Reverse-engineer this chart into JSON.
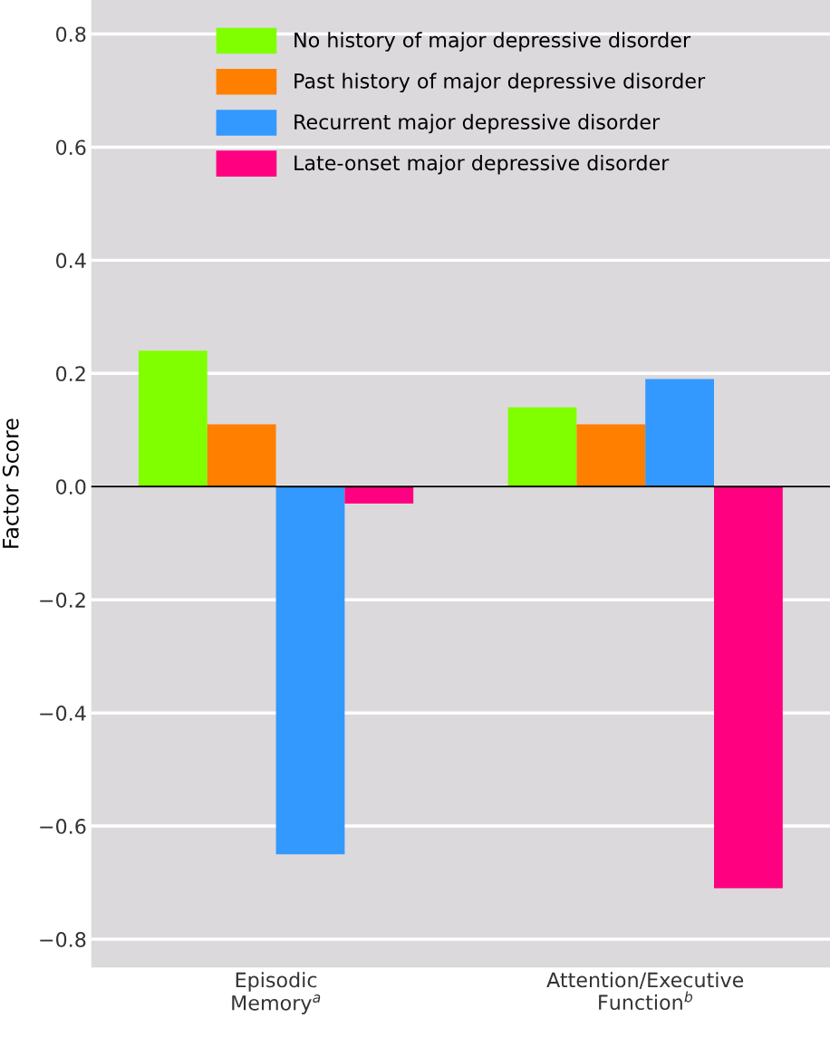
{
  "chart_data": {
    "type": "bar",
    "ylabel": "Factor Score",
    "categories": [
      "Episodic\nMemory$^{a}$",
      "Attention/Executive\nFunction$^{b}$"
    ],
    "series": [
      {
        "name": "No history of major depressive disorder",
        "color": "#80ff00",
        "values": [
          0.24,
          0.14
        ]
      },
      {
        "name": "Past history of major depressive disorder",
        "color": "#ff8000",
        "values": [
          0.11,
          0.11
        ]
      },
      {
        "name": "Recurrent major depressive disorder",
        "color": "#3399ff",
        "values": [
          -0.65,
          0.19
        ]
      },
      {
        "name": "Late-onset major depressive disorder",
        "color": "#ff0080",
        "values": [
          -0.03,
          -0.71
        ]
      }
    ],
    "ylim": [
      -0.85,
      0.86
    ],
    "yticks": [
      {
        "value": -0.8,
        "label": "−0.8"
      },
      {
        "value": -0.6,
        "label": "−0.6"
      },
      {
        "value": -0.4,
        "label": "−0.4"
      },
      {
        "value": -0.2,
        "label": "−0.2"
      },
      {
        "value": 0.0,
        "label": "0.0"
      },
      0.2,
      0.4,
      0.6,
      0.8
    ],
    "ref_lines": [
      {
        "axis": "y",
        "value": 0,
        "color": "#000000"
      }
    ],
    "grid": "y",
    "legend": "top"
  }
}
